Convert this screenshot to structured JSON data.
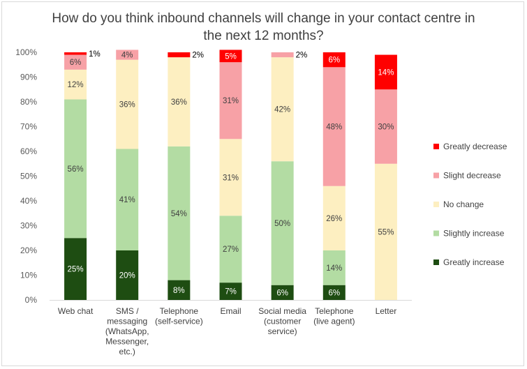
{
  "chart_data": {
    "type": "bar",
    "stacked": true,
    "percent_stacked": true,
    "title_lines": [
      "How do you think inbound channels will change in your contact centre in",
      "the next 12 months?"
    ],
    "categories": [
      [
        "Web chat"
      ],
      [
        "SMS /",
        "messaging",
        "(WhatsApp,",
        "Messenger,",
        "etc.)"
      ],
      [
        "Telephone",
        "(self-service)"
      ],
      [
        "Email"
      ],
      [
        "Social media",
        "(customer",
        "service)"
      ],
      [
        "Telephone",
        "(live agent)"
      ],
      [
        "Letter"
      ]
    ],
    "ylim": [
      0,
      100
    ],
    "yticks": [
      "0%",
      "10%",
      "20%",
      "30%",
      "40%",
      "50%",
      "60%",
      "70%",
      "80%",
      "90%",
      "100%"
    ],
    "legend_position": "right",
    "series": [
      {
        "name": "Greatly increase",
        "color": "#1e4d12",
        "label_color": "#ffffff",
        "values": [
          25,
          20,
          8,
          7,
          6,
          6,
          0
        ],
        "labels": [
          "25%",
          "20%",
          "8%",
          "7%",
          "6%",
          "6%",
          ""
        ]
      },
      {
        "name": "Slightly increase",
        "color": "#b3dca3",
        "label_color": "#404040",
        "values": [
          56,
          41,
          54,
          27,
          50,
          14,
          0
        ],
        "labels": [
          "56%",
          "41%",
          "54%",
          "27%",
          "50%",
          "14%",
          ""
        ]
      },
      {
        "name": "No change",
        "color": "#fdefc1",
        "label_color": "#404040",
        "values": [
          12,
          36,
          36,
          31,
          42,
          26,
          55
        ],
        "labels": [
          "12%",
          "36%",
          "36%",
          "31%",
          "42%",
          "26%",
          "55%"
        ]
      },
      {
        "name": "Slight decrease",
        "color": "#f7a1a6",
        "label_color": "#404040",
        "values": [
          6,
          4,
          0,
          31,
          2,
          48,
          30
        ],
        "labels": [
          "6%",
          "4%",
          "",
          "31%",
          "2%",
          "48%",
          "30%"
        ]
      },
      {
        "name": "Greatly decrease",
        "color": "#ff0000",
        "label_color": "#ffffff",
        "values": [
          1,
          0,
          2,
          5,
          0,
          6,
          14
        ],
        "labels": [
          "1%",
          "",
          "2%",
          "5%",
          "",
          "6%",
          "14%"
        ]
      }
    ]
  }
}
